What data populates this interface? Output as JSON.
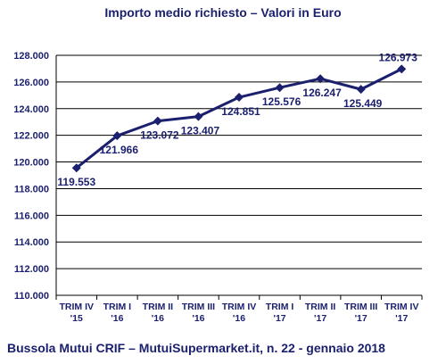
{
  "chart_data": {
    "type": "line",
    "title": "Importo medio richiesto – Valori in Euro",
    "categories": [
      [
        "TRIM IV",
        "'15"
      ],
      [
        "TRIM I",
        "'16"
      ],
      [
        "TRIM II",
        "'16"
      ],
      [
        "TRIM III",
        "'16"
      ],
      [
        "TRIM IV",
        "'16"
      ],
      [
        "TRIM I",
        "'17"
      ],
      [
        "TRIM II",
        "'17"
      ],
      [
        "TRIM III",
        "'17"
      ],
      [
        "TRIM IV",
        "'17"
      ]
    ],
    "values": [
      119553,
      121966,
      123072,
      123407,
      124851,
      125576,
      126247,
      125449,
      126973
    ],
    "data_labels": [
      "119.553",
      "121.966",
      "123.072",
      "123.407",
      "124.851",
      "125.576",
      "126.247",
      "125.449",
      "126.973"
    ],
    "y_ticks": [
      "110.000",
      "112.000",
      "114.000",
      "116.000",
      "118.000",
      "120.000",
      "122.000",
      "124.000",
      "126.000",
      "128.000"
    ],
    "ylim": [
      110000,
      128000
    ],
    "ytick_step": 2000,
    "grid": "horizontal",
    "line_color": "#1a1f6e"
  },
  "footer": "Bussola Mutui CRIF – MutuiSupermarket.it, n. 22 - gennaio 2018"
}
